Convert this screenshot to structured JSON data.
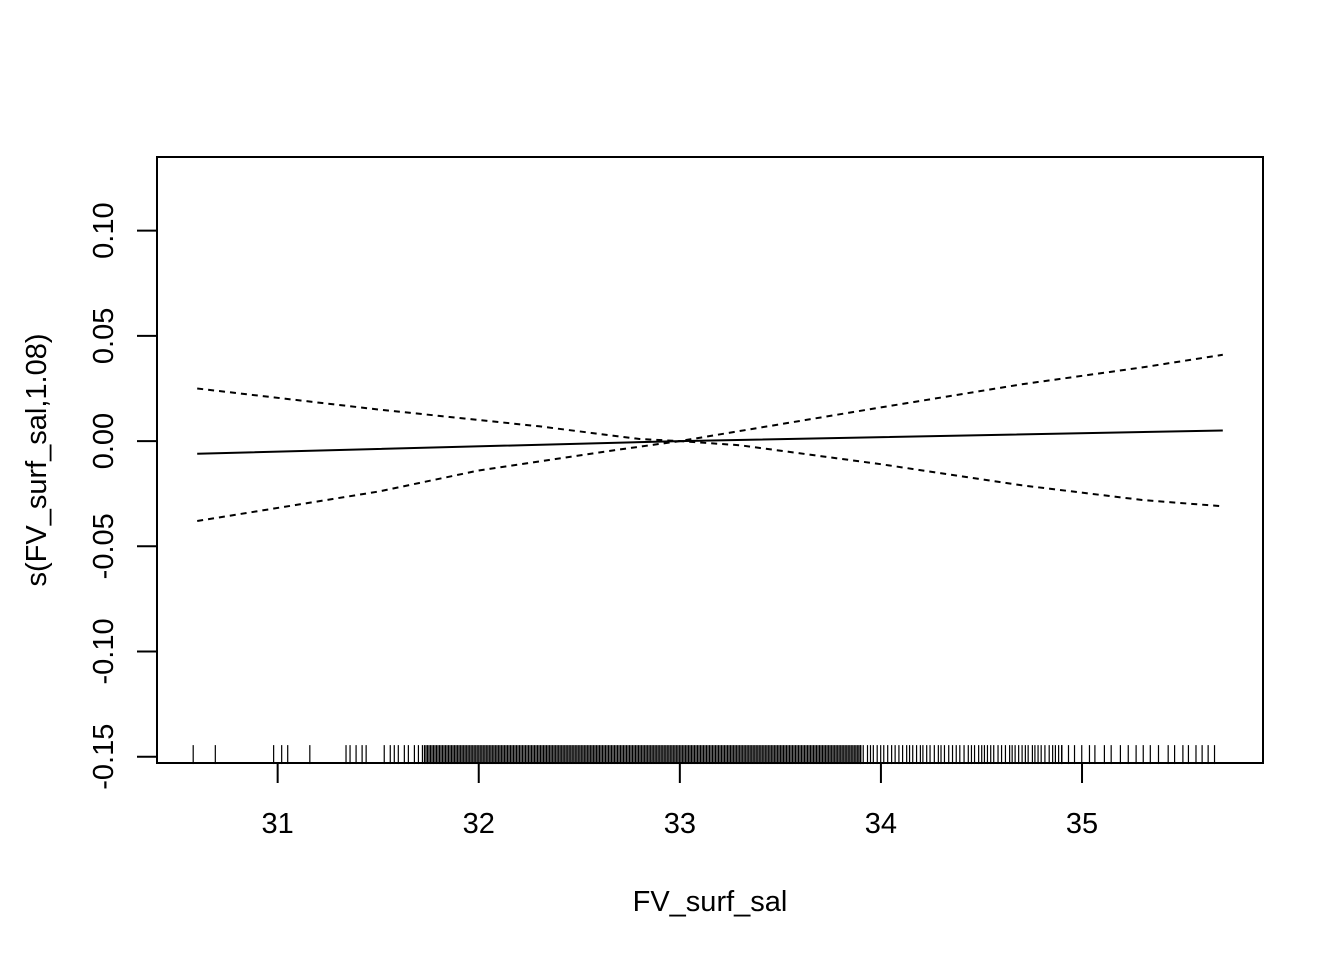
{
  "chart_data": {
    "type": "line",
    "title": "",
    "xlabel": "FV_surf_sal",
    "ylabel": "s(FV_surf_sal,1.08)",
    "xlim": [
      30.4,
      35.9
    ],
    "ylim": [
      -0.153,
      0.135
    ],
    "xticks": [
      "31",
      "32",
      "33",
      "34",
      "35"
    ],
    "yticks": [
      "-0.15",
      "-0.10",
      "-0.05",
      "0.00",
      "0.05",
      "0.10"
    ],
    "grid": false,
    "legend": "none",
    "series": [
      {
        "style": "solid",
        "x": [
          30.6,
          33.0,
          35.7
        ],
        "y": [
          -0.006,
          0.0,
          0.005
        ]
      },
      {
        "style": "dashed",
        "x": [
          30.6,
          31.5,
          32.3,
          32.8,
          33.0,
          33.3,
          34.0,
          34.7,
          35.3,
          35.7
        ],
        "y": [
          0.025,
          0.015,
          0.007,
          0.001,
          0.0,
          -0.002,
          -0.011,
          -0.021,
          -0.028,
          -0.031
        ]
      },
      {
        "style": "dashed",
        "x": [
          30.6,
          31.5,
          32.0,
          32.7,
          33.0,
          33.5,
          34.0,
          34.7,
          35.3,
          35.7
        ],
        "y": [
          -0.038,
          -0.024,
          -0.014,
          -0.004,
          0.0,
          0.008,
          0.016,
          0.027,
          0.035,
          0.041
        ]
      }
    ],
    "rug": [
      30.58,
      30.69,
      30.98,
      31.02,
      31.05,
      31.16,
      31.34,
      31.36,
      31.39,
      31.42,
      31.44,
      31.53,
      31.56,
      31.58,
      31.6,
      31.63,
      31.65,
      31.68,
      31.7,
      31.72
    ]
  }
}
